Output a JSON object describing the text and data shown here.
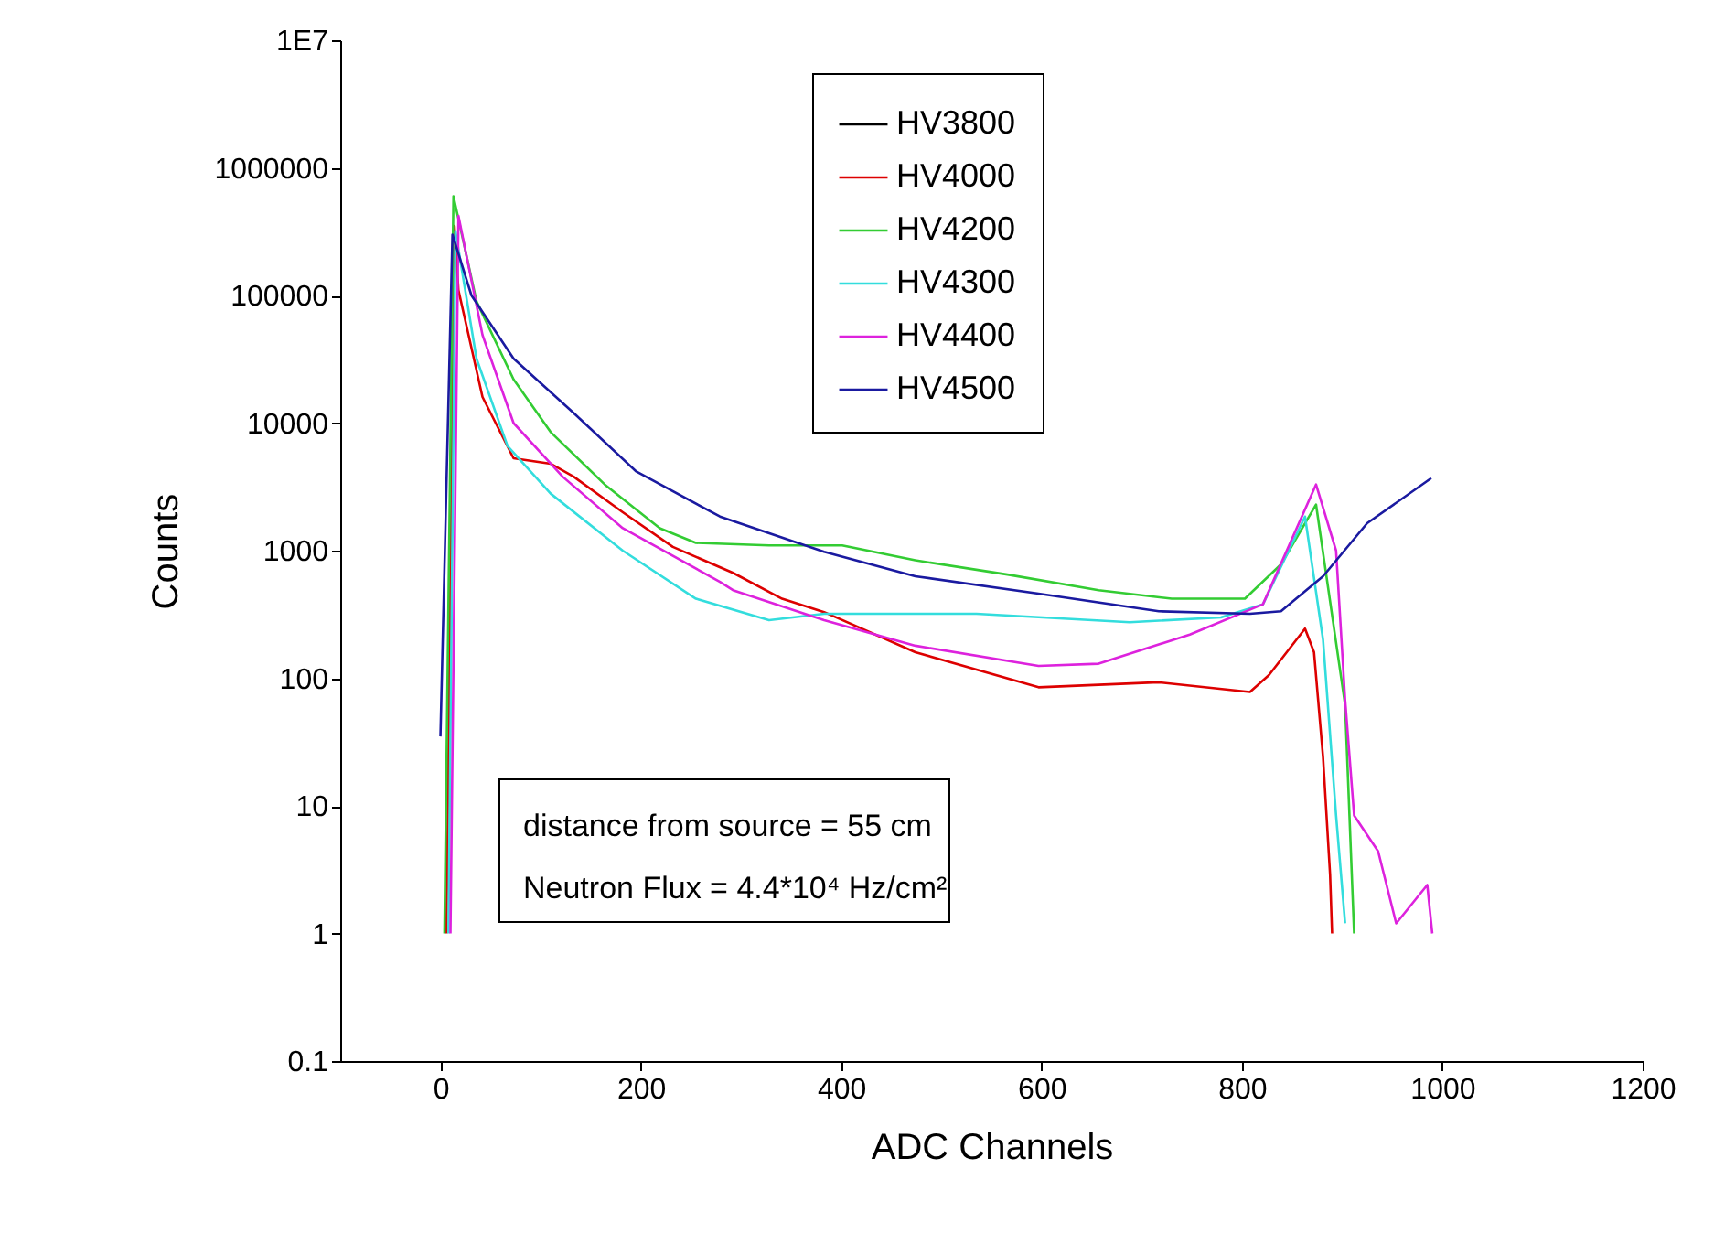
{
  "chart_data": {
    "type": "line",
    "xlabel": "ADC Channels",
    "ylabel": "Counts",
    "xlim": [
      -100,
      1200
    ],
    "xticks": [
      0,
      200,
      400,
      600,
      800,
      1000,
      1200
    ],
    "ylim": [
      0.1,
      10000000
    ],
    "yticks": [
      0.1,
      1,
      10,
      100,
      1000,
      10000,
      100000,
      1000000,
      {
        "value": 10000000,
        "label": "1E7"
      }
    ],
    "log": "y",
    "grid": false,
    "legend": "top",
    "marker": "none",
    "line_style": "solid",
    "annotations": [
      "distance from source = 55 cm",
      "Neutron Flux = 4.4*10⁴ Hz/cm²"
    ],
    "series": [
      {
        "name": "HV3800",
        "color": "#000000"
      },
      {
        "name": "HV4000",
        "color": "#dd0000",
        "x": [
          6,
          14,
          18,
          42,
          73,
          110,
          133,
          182,
          232,
          292,
          341,
          383,
          474,
          597,
          717,
          808,
          827,
          863,
          872,
          881,
          888,
          890
        ],
        "values": [
          1,
          350000,
          110000,
          16000,
          5300,
          4800,
          3800,
          2000,
          1070,
          670,
          420,
          330,
          160,
          85,
          93,
          78,
          106,
          245,
          160,
          24,
          2.9,
          1
        ]
      },
      {
        "name": "HV4200",
        "color": "#33cc33",
        "x": [
          4,
          13,
          36,
          73,
          110,
          164,
          219,
          255,
          328,
          401,
          474,
          566,
          657,
          730,
          803,
          839,
          874,
          903,
          912
        ],
        "values": [
          1,
          600000,
          90000,
          22000,
          8500,
          3300,
          1500,
          1150,
          1100,
          1100,
          840,
          650,
          490,
          420,
          420,
          780,
          2300,
          62,
          1
        ]
      },
      {
        "name": "HV4300",
        "color": "#33dddd",
        "x": [
          8,
          15,
          36,
          67,
          110,
          182,
          255,
          328,
          383,
          535,
          688,
          779,
          821,
          863,
          881,
          894,
          903
        ],
        "values": [
          1,
          320000,
          32000,
          6600,
          2800,
          1000,
          420,
          285,
          320,
          320,
          275,
          300,
          380,
          1850,
          200,
          8.4,
          1.2
        ]
      },
      {
        "name": "HV4400",
        "color": "#dd22dd",
        "x": [
          10,
          18,
          42,
          73,
          122,
          182,
          279,
          292,
          383,
          474,
          597,
          657,
          748,
          821,
          874,
          894,
          903,
          912,
          936,
          954,
          985,
          990
        ],
        "values": [
          1,
          420000,
          49000,
          10000,
          3800,
          1500,
          570,
          490,
          285,
          180,
          125,
          130,
          220,
          380,
          3300,
          1000,
          68,
          8.4,
          4.4,
          1.2,
          2.4,
          1
        ]
      },
      {
        "name": "HV4500",
        "color": "#1a1aa0",
        "x": [
          0,
          12,
          31,
          73,
          133,
          195,
          279,
          383,
          474,
          597,
          717,
          808,
          839,
          881,
          925,
          989
        ],
        "values": [
          35,
          300000,
          100000,
          32000,
          12000,
          4200,
          1850,
          980,
          630,
          460,
          335,
          320,
          335,
          630,
          1640,
          3700
        ]
      }
    ]
  }
}
